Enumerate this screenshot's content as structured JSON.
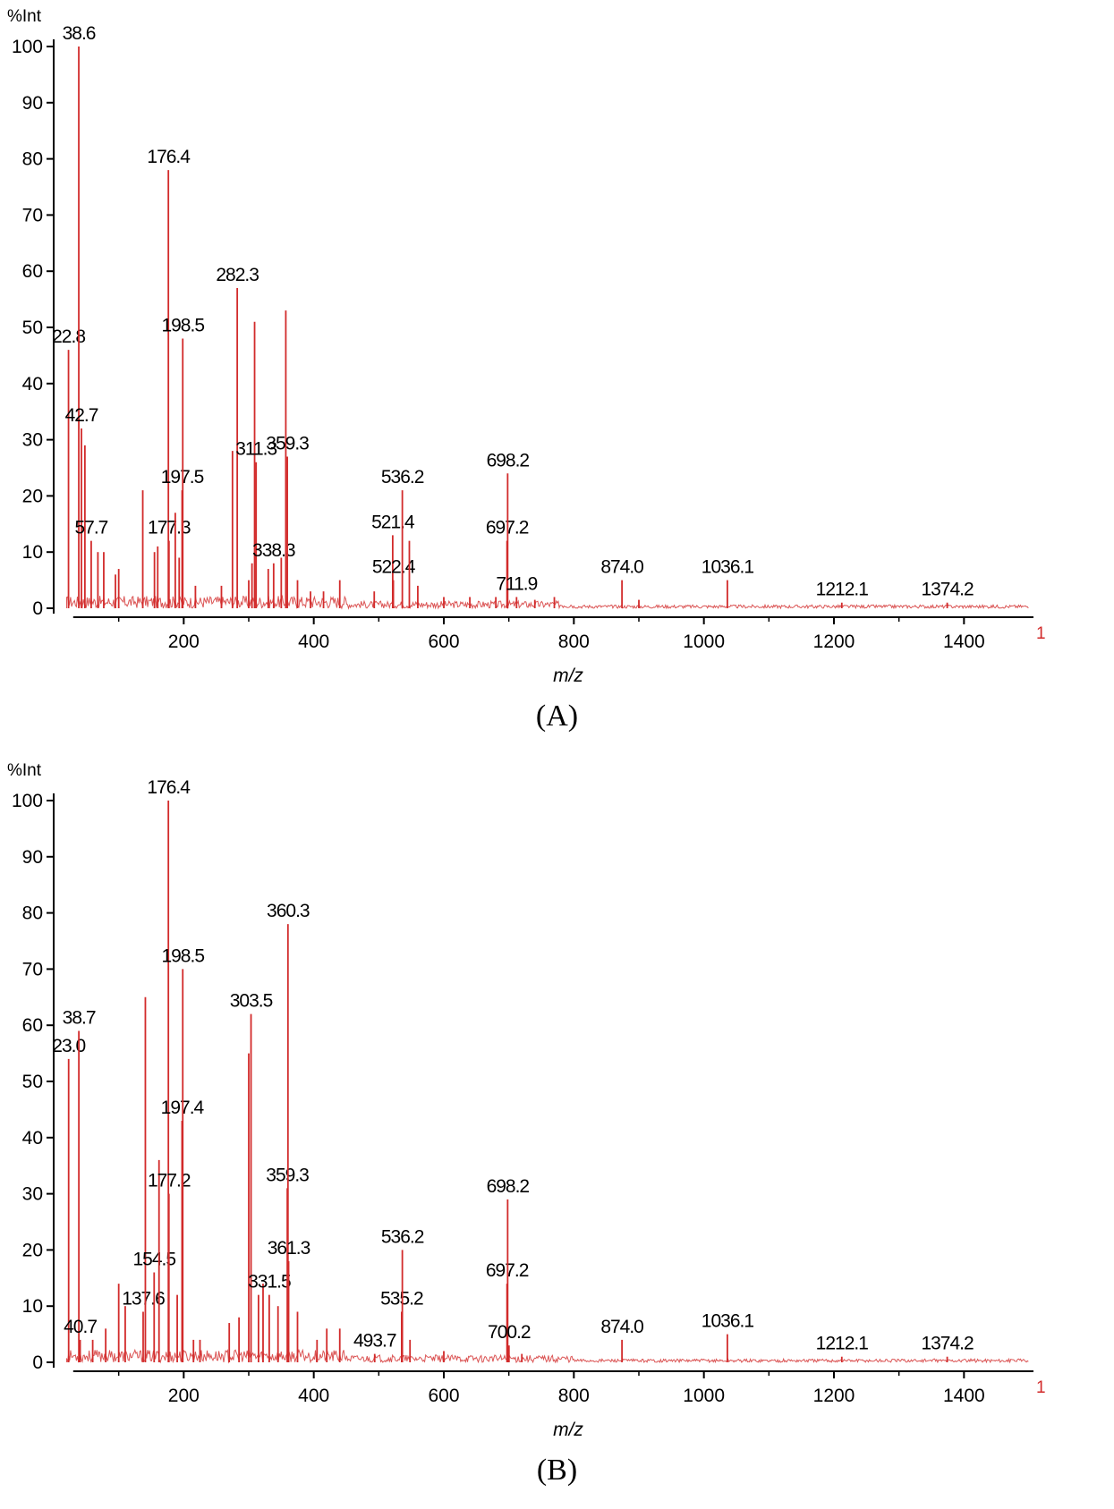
{
  "chart_data": [
    {
      "type": "line",
      "panel": "(A)",
      "ylabel": "%Int",
      "xlabel": "m/z",
      "xlim": [
        0,
        1500
      ],
      "ylim": [
        0,
        100
      ],
      "x_ticks": [
        200,
        400,
        600,
        800,
        1000,
        1200,
        1400
      ],
      "y_ticks": [
        0,
        10,
        20,
        30,
        40,
        50,
        60,
        70,
        80,
        90,
        100
      ],
      "edge_marker": "1",
      "color": "#d22b2b",
      "peaks": [
        {
          "x": 22.8,
          "y": 46,
          "label": "22.8"
        },
        {
          "x": 38.6,
          "y": 100,
          "label": "38.6"
        },
        {
          "x": 42.7,
          "y": 32,
          "label": "42.7"
        },
        {
          "x": 48,
          "y": 29
        },
        {
          "x": 57.7,
          "y": 12,
          "label": "57.7"
        },
        {
          "x": 68,
          "y": 10
        },
        {
          "x": 77,
          "y": 10
        },
        {
          "x": 95,
          "y": 6
        },
        {
          "x": 100,
          "y": 7
        },
        {
          "x": 137,
          "y": 21
        },
        {
          "x": 155,
          "y": 10
        },
        {
          "x": 160,
          "y": 11
        },
        {
          "x": 176.4,
          "y": 78,
          "label": "176.4"
        },
        {
          "x": 177.3,
          "y": 12,
          "label": "177.3"
        },
        {
          "x": 187,
          "y": 17
        },
        {
          "x": 193,
          "y": 9
        },
        {
          "x": 197.5,
          "y": 21,
          "label": "197.5"
        },
        {
          "x": 198.5,
          "y": 48,
          "label": "198.5"
        },
        {
          "x": 218,
          "y": 4
        },
        {
          "x": 258,
          "y": 4
        },
        {
          "x": 275,
          "y": 28
        },
        {
          "x": 282.3,
          "y": 57,
          "label": "282.3"
        },
        {
          "x": 300,
          "y": 5
        },
        {
          "x": 305,
          "y": 8
        },
        {
          "x": 309,
          "y": 51
        },
        {
          "x": 311.3,
          "y": 26,
          "label": "311.3"
        },
        {
          "x": 330,
          "y": 7
        },
        {
          "x": 338.3,
          "y": 8,
          "label": "338.3"
        },
        {
          "x": 350,
          "y": 9
        },
        {
          "x": 357,
          "y": 53
        },
        {
          "x": 359.3,
          "y": 27,
          "label": "359.3"
        },
        {
          "x": 375,
          "y": 5
        },
        {
          "x": 395,
          "y": 3
        },
        {
          "x": 415,
          "y": 3
        },
        {
          "x": 440,
          "y": 5
        },
        {
          "x": 493,
          "y": 3
        },
        {
          "x": 521.4,
          "y": 13,
          "label": "521.4"
        },
        {
          "x": 522.4,
          "y": 5,
          "label": "522.4"
        },
        {
          "x": 536.2,
          "y": 21,
          "label": "536.2"
        },
        {
          "x": 547,
          "y": 12
        },
        {
          "x": 560,
          "y": 4
        },
        {
          "x": 600,
          "y": 2
        },
        {
          "x": 640,
          "y": 2
        },
        {
          "x": 680,
          "y": 2
        },
        {
          "x": 697.2,
          "y": 12,
          "label": "697.2"
        },
        {
          "x": 698.2,
          "y": 24,
          "label": "698.2"
        },
        {
          "x": 711.9,
          "y": 2,
          "label": "711.9"
        },
        {
          "x": 740,
          "y": 1.5
        },
        {
          "x": 770,
          "y": 2
        },
        {
          "x": 874.0,
          "y": 5,
          "label": "874.0"
        },
        {
          "x": 900,
          "y": 1.5
        },
        {
          "x": 1036.1,
          "y": 5,
          "label": "1036.1"
        },
        {
          "x": 1212.1,
          "y": 1,
          "label": "1212.1"
        },
        {
          "x": 1374.2,
          "y": 1,
          "label": "1374.2"
        }
      ]
    },
    {
      "type": "line",
      "panel": "(B)",
      "ylabel": "%Int",
      "xlabel": "m/z",
      "xlim": [
        0,
        1500
      ],
      "ylim": [
        0,
        100
      ],
      "x_ticks": [
        200,
        400,
        600,
        800,
        1000,
        1200,
        1400
      ],
      "y_ticks": [
        0,
        10,
        20,
        30,
        40,
        50,
        60,
        70,
        80,
        90,
        100
      ],
      "edge_marker": "1",
      "color": "#d22b2b",
      "peaks": [
        {
          "x": 23.0,
          "y": 54,
          "label": "23.0"
        },
        {
          "x": 38.7,
          "y": 59,
          "label": "38.7"
        },
        {
          "x": 40.7,
          "y": 4,
          "label": "40.7"
        },
        {
          "x": 60,
          "y": 4
        },
        {
          "x": 80,
          "y": 6
        },
        {
          "x": 100,
          "y": 14
        },
        {
          "x": 110,
          "y": 10
        },
        {
          "x": 137.6,
          "y": 9,
          "label": "137.6"
        },
        {
          "x": 141,
          "y": 65
        },
        {
          "x": 154.5,
          "y": 16,
          "label": "154.5"
        },
        {
          "x": 162,
          "y": 36
        },
        {
          "x": 176.4,
          "y": 100,
          "label": "176.4"
        },
        {
          "x": 177.2,
          "y": 30,
          "label": "177.2"
        },
        {
          "x": 190,
          "y": 12
        },
        {
          "x": 197.4,
          "y": 43,
          "label": "197.4"
        },
        {
          "x": 198.5,
          "y": 70,
          "label": "198.5"
        },
        {
          "x": 215,
          "y": 4
        },
        {
          "x": 225,
          "y": 4
        },
        {
          "x": 270,
          "y": 7
        },
        {
          "x": 285,
          "y": 8
        },
        {
          "x": 300,
          "y": 55
        },
        {
          "x": 303.5,
          "y": 62,
          "label": "303.5"
        },
        {
          "x": 315,
          "y": 12
        },
        {
          "x": 322,
          "y": 14
        },
        {
          "x": 331.5,
          "y": 12,
          "label": "331.5"
        },
        {
          "x": 345,
          "y": 10
        },
        {
          "x": 359.3,
          "y": 31,
          "label": "359.3"
        },
        {
          "x": 360.3,
          "y": 78,
          "label": "360.3"
        },
        {
          "x": 361.3,
          "y": 18,
          "label": "361.3"
        },
        {
          "x": 375,
          "y": 9
        },
        {
          "x": 405,
          "y": 4
        },
        {
          "x": 420,
          "y": 6
        },
        {
          "x": 440,
          "y": 6
        },
        {
          "x": 493.7,
          "y": 1.5,
          "label": "493.7"
        },
        {
          "x": 535.2,
          "y": 9,
          "label": "535.2"
        },
        {
          "x": 536.2,
          "y": 20,
          "label": "536.2"
        },
        {
          "x": 548,
          "y": 4
        },
        {
          "x": 600,
          "y": 2
        },
        {
          "x": 697.2,
          "y": 14,
          "label": "697.2"
        },
        {
          "x": 698.2,
          "y": 29,
          "label": "698.2"
        },
        {
          "x": 700.2,
          "y": 3,
          "label": "700.2"
        },
        {
          "x": 720,
          "y": 1.5
        },
        {
          "x": 874.0,
          "y": 4,
          "label": "874.0"
        },
        {
          "x": 1036.1,
          "y": 5,
          "label": "1036.1"
        },
        {
          "x": 1212.1,
          "y": 1,
          "label": "1212.1"
        },
        {
          "x": 1374.2,
          "y": 1,
          "label": "1374.2"
        }
      ]
    }
  ],
  "captions": {
    "a": "(A)",
    "b": "(B)"
  }
}
